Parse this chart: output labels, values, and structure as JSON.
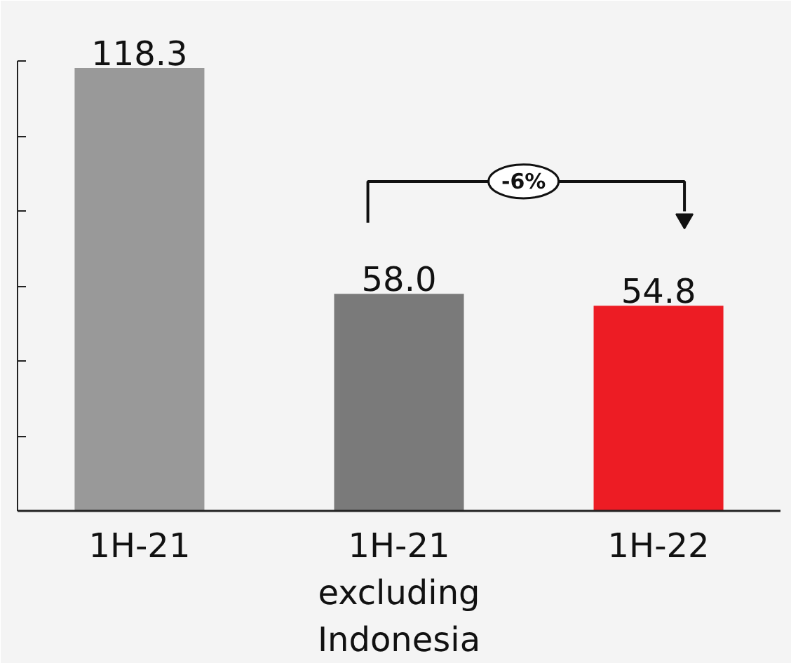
{
  "chart_data": {
    "type": "bar",
    "categories": [
      "1H-21",
      "1H-21 excluding Indonesia",
      "1H-22"
    ],
    "values": [
      118.3,
      58.0,
      54.8
    ],
    "colors": [
      "#999999",
      "#7a7a7a",
      "#ed1c24"
    ],
    "ylim": [
      0,
      120
    ],
    "yticks": [
      {
        "value": 0,
        "label": null
      },
      {
        "value": 20,
        "label": null
      },
      {
        "value": 40,
        "label": null
      },
      {
        "value": 60,
        "label": null
      },
      {
        "value": 80,
        "label": null
      },
      {
        "value": 100,
        "label": null
      },
      {
        "value": 120,
        "label": null
      }
    ],
    "value_labels": [
      "118.3",
      "58.0",
      "54.8"
    ],
    "annotations": [
      "-6%"
    ]
  }
}
